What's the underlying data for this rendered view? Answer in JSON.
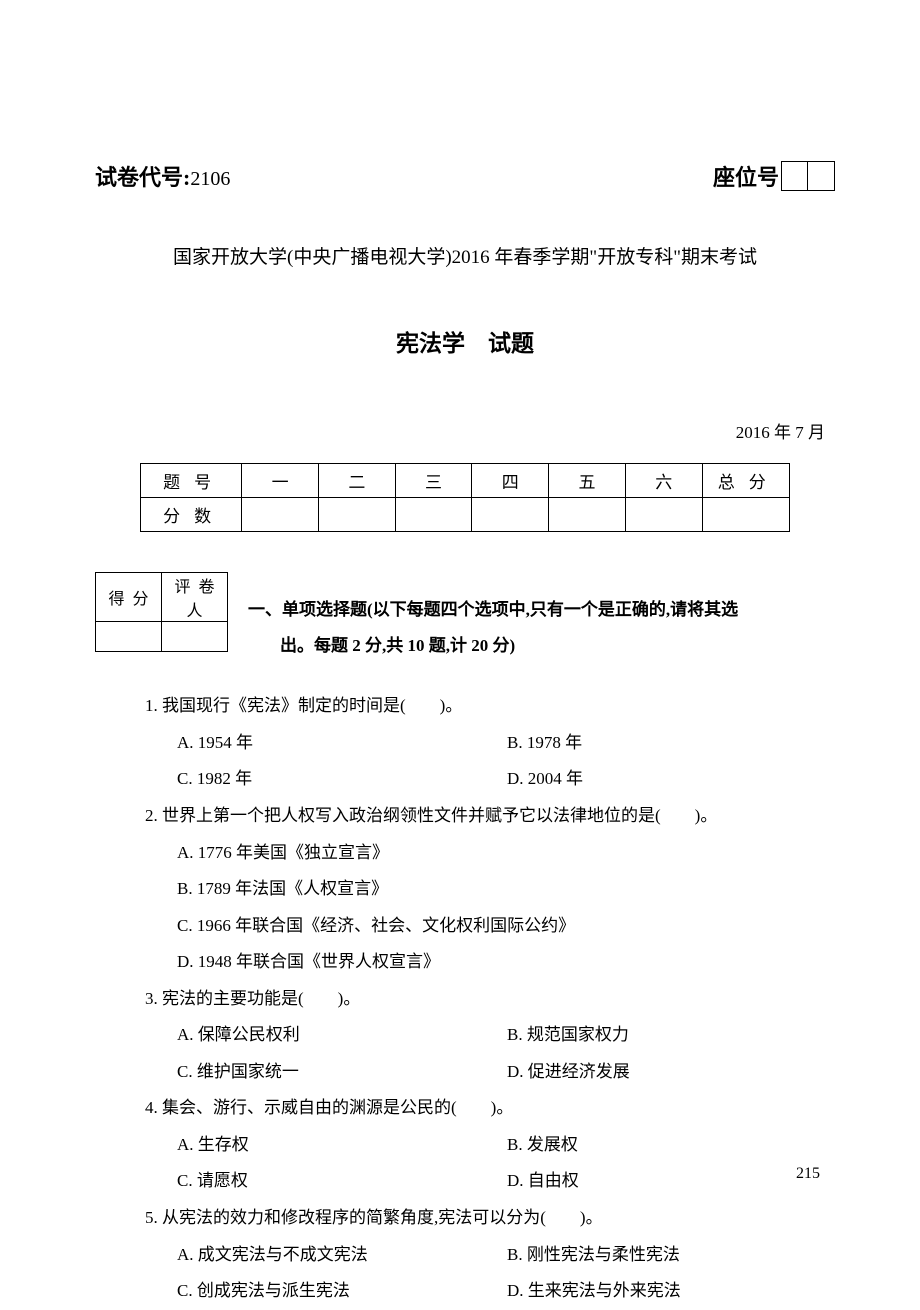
{
  "header": {
    "paper_code_label": "试卷代号:",
    "paper_code_value": "2106",
    "seat_label": "座位号"
  },
  "university_line": "国家开放大学(中央广播电视大学)2016 年春季学期\"开放专科\"期末考试",
  "exam_title": "宪法学　试题",
  "date_line": "2016 年 7 月",
  "score_table": {
    "row_label": "题号",
    "score_label": "分数",
    "cols": [
      "一",
      "二",
      "三",
      "四",
      "五",
      "六"
    ],
    "total": "总分"
  },
  "grader_table": {
    "score": "得分",
    "grader": "评卷人"
  },
  "section1": {
    "title_line1": "一、单项选择题(以下每题四个选项中,只有一个是正确的,请将其选",
    "title_line2": "出。每题 2 分,共 10 题,计 20 分)"
  },
  "questions": [
    {
      "stem": "1. 我国现行《宪法》制定的时间是(　　)。",
      "layout": "two-col",
      "options": [
        {
          "a": "A. 1954 年",
          "b": "B. 1978 年"
        },
        {
          "a": "C. 1982 年",
          "b": "D. 2004 年"
        }
      ]
    },
    {
      "stem": "2. 世界上第一个把人权写入政治纲领性文件并赋予它以法律地位的是(　　)。",
      "layout": "single",
      "options": [
        "A. 1776 年美国《独立宣言》",
        "B. 1789 年法国《人权宣言》",
        "C. 1966 年联合国《经济、社会、文化权利国际公约》",
        "D. 1948 年联合国《世界人权宣言》"
      ]
    },
    {
      "stem": "3. 宪法的主要功能是(　　)。",
      "layout": "two-col",
      "options": [
        {
          "a": "A. 保障公民权利",
          "b": "B. 规范国家权力"
        },
        {
          "a": "C. 维护国家统一",
          "b": "D. 促进经济发展"
        }
      ]
    },
    {
      "stem": "4. 集会、游行、示威自由的渊源是公民的(　　)。",
      "layout": "two-col",
      "options": [
        {
          "a": "A. 生存权",
          "b": "B. 发展权"
        },
        {
          "a": "C. 请愿权",
          "b": "D. 自由权"
        }
      ]
    },
    {
      "stem": "5. 从宪法的效力和修改程序的简繁角度,宪法可以分为(　　)。",
      "layout": "two-col",
      "options": [
        {
          "a": "A. 成文宪法与不成文宪法",
          "b": "B. 刚性宪法与柔性宪法"
        },
        {
          "a": "C. 创成宪法与派生宪法",
          "b": "D. 生来宪法与外来宪法"
        }
      ]
    }
  ],
  "page_number": "215"
}
